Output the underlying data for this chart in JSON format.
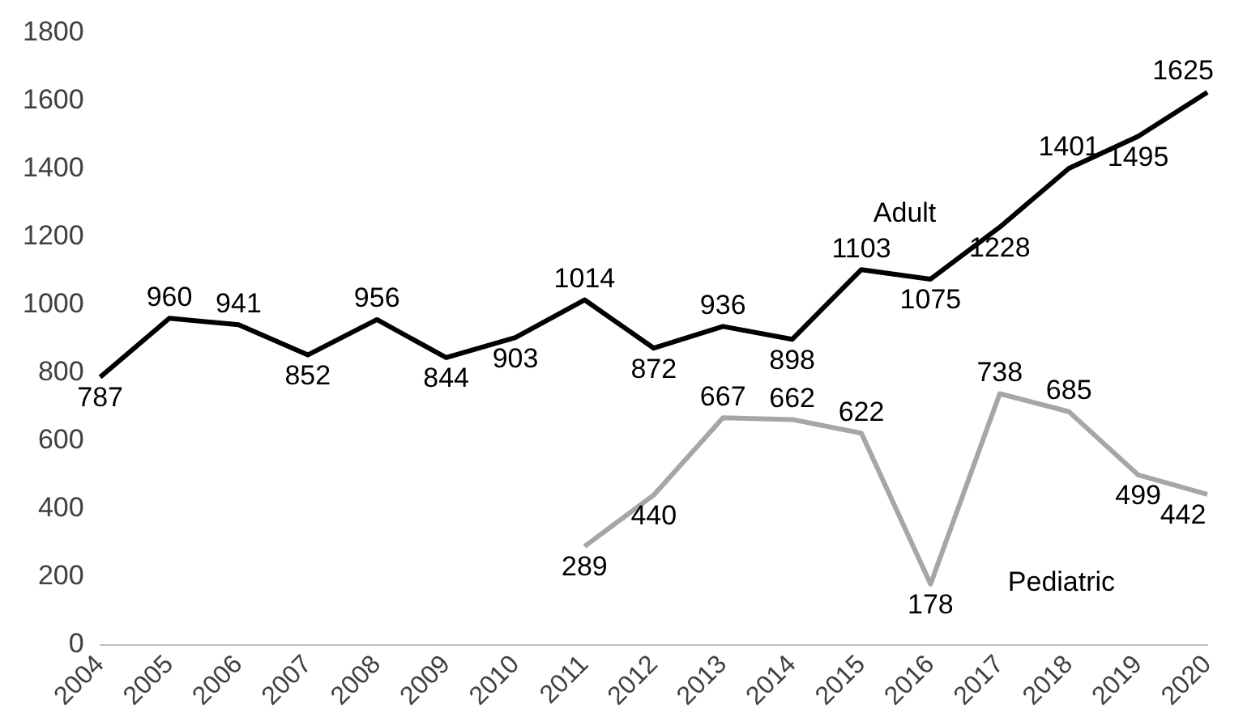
{
  "chart_data": {
    "type": "line",
    "categories": [
      "2004",
      "2005",
      "2006",
      "2007",
      "2008",
      "2009",
      "2010",
      "2011",
      "2012",
      "2013",
      "2014",
      "2015",
      "2016",
      "2017",
      "2018",
      "2019",
      "2020"
    ],
    "series": [
      {
        "name": "Adult",
        "color": "#000000",
        "values": [
          787,
          960,
          941,
          852,
          956,
          844,
          903,
          1014,
          872,
          936,
          898,
          1103,
          1075,
          1228,
          1401,
          1495,
          1625
        ]
      },
      {
        "name": "Pediatric",
        "color": "#a6a6a6",
        "values": [
          null,
          null,
          null,
          null,
          null,
          null,
          null,
          289,
          440,
          667,
          662,
          622,
          178,
          738,
          685,
          499,
          442
        ]
      }
    ],
    "ylim": [
      0,
      1800
    ],
    "yticks": [
      0,
      200,
      400,
      600,
      800,
      1000,
      1200,
      1400,
      1600,
      1800
    ],
    "grid": false,
    "legend": false,
    "marker": "none",
    "line_style": "solid",
    "data_labels": true
  }
}
